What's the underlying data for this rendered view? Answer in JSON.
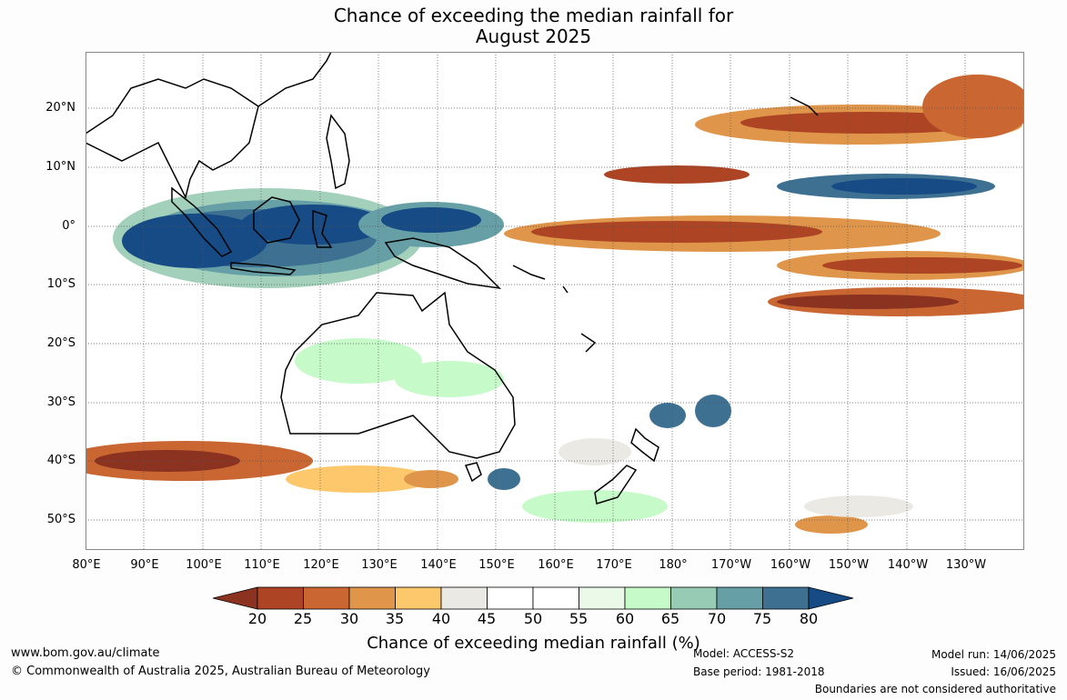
{
  "title_line1": "Chance of exceeding the median rainfall for",
  "title_line2": "August 2025",
  "lat_labels": [
    "20°N",
    "10°N",
    "0°",
    "10°S",
    "20°S",
    "30°S",
    "40°S",
    "50°S"
  ],
  "lon_labels": [
    "80°E",
    "90°E",
    "100°E",
    "110°E",
    "120°E",
    "130°E",
    "140°E",
    "150°E",
    "160°E",
    "170°E",
    "180°",
    "170°W",
    "160°W",
    "150°W",
    "140°W",
    "130°W"
  ],
  "colorbar": {
    "values": [
      "20",
      "25",
      "30",
      "35",
      "40",
      "45",
      "50",
      "55",
      "60",
      "65",
      "70",
      "75",
      "80"
    ],
    "colors": [
      "#8b3220",
      "#ad4423",
      "#c96632",
      "#e0964a",
      "#fdc86b",
      "#ebe9e4",
      "#ffffff",
      "#ffffff",
      "#eaf9e8",
      "#c6fbc9",
      "#98cbb4",
      "#66a0a6",
      "#3d7091",
      "#164b85"
    ],
    "title": "Chance of exceeding median rainfall (%)"
  },
  "footer": {
    "website": "www.bom.gov.au/climate",
    "copyright": "© Commonwealth of Australia 2025, Australian Bureau of Meteorology",
    "model": "Model: ACCESS-S2",
    "base_period": "Base period: 1981-2018",
    "model_run": "Model run: 14/06/2025",
    "issued": "Issued: 16/06/2025",
    "disclaimer": "Boundaries are not considered authoritative"
  }
}
